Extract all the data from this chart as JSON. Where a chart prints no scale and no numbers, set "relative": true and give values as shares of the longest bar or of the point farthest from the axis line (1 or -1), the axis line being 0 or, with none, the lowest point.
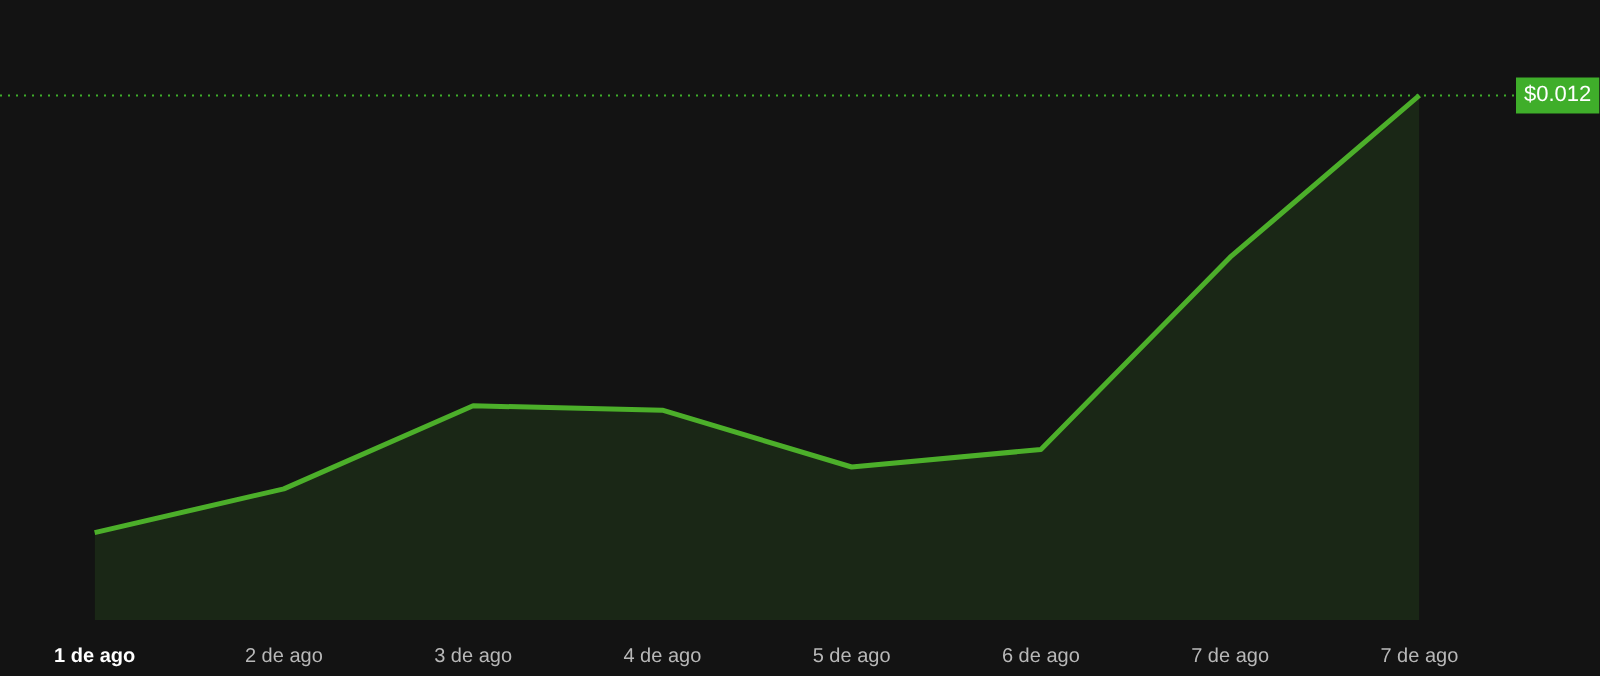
{
  "chart_data": {
    "type": "area",
    "relative": true,
    "marker": "none",
    "categories": [
      "1 de ago",
      "2 de ago",
      "3 de ago",
      "4 de ago",
      "5 de ago",
      "6 de ago",
      "7 de ago",
      "7 de ago"
    ],
    "series": [
      {
        "color": "#4caf2a",
        "values": [
          0,
          0.1,
          0.29,
          0.28,
          0.15,
          0.19,
          0.63,
          1
        ]
      }
    ],
    "ref_lines": [
      {
        "axis": "y",
        "value": 1,
        "color": "#3fae2a",
        "line_style": "dotted"
      }
    ],
    "annotations": [
      "$0.012"
    ]
  }
}
